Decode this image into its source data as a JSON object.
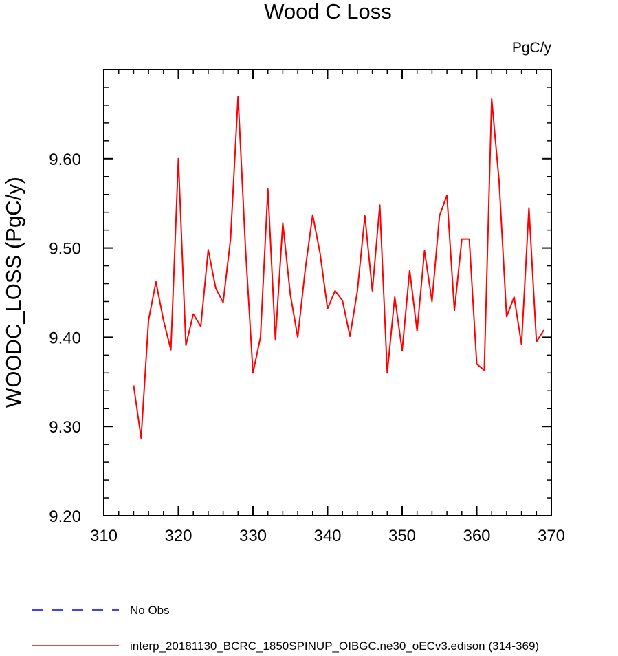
{
  "chart_data": {
    "type": "line",
    "title": "Wood C Loss",
    "units_label": "PgC/y",
    "xlabel": "",
    "ylabel": "WOODC_LOSS  (PgC/y)",
    "xlim": [
      310,
      370
    ],
    "ylim": [
      9.2,
      9.7
    ],
    "x_ticks": [
      "310",
      "320",
      "330",
      "340",
      "350",
      "360",
      "370"
    ],
    "y_ticks": [
      "9.20",
      "9.30",
      "9.40",
      "9.50",
      "9.60"
    ],
    "grid": false,
    "legend_position": "bottom",
    "series": [
      {
        "name": "No Obs",
        "color": "#0000ff",
        "dash": "dashed",
        "x": [],
        "y": []
      },
      {
        "name": "interp_20181130_BCRC_1850SPINUP_OIBGC.ne30_oECv3.edison (314-369)",
        "color": "#ff0000",
        "dash": "solid",
        "x": [
          314,
          315,
          316,
          317,
          318,
          319,
          320,
          321,
          322,
          323,
          324,
          325,
          326,
          327,
          328,
          329,
          330,
          331,
          332,
          333,
          334,
          335,
          336,
          337,
          338,
          339,
          340,
          341,
          342,
          343,
          344,
          345,
          346,
          347,
          348,
          349,
          350,
          351,
          352,
          353,
          354,
          355,
          356,
          357,
          358,
          359,
          360,
          361,
          362,
          363,
          364,
          365,
          366,
          367,
          368,
          369
        ],
        "y": [
          9.346,
          9.287,
          9.419,
          9.462,
          9.419,
          9.386,
          9.6,
          9.391,
          9.426,
          9.412,
          9.498,
          9.455,
          9.439,
          9.51,
          9.67,
          9.5,
          9.36,
          9.4,
          9.566,
          9.397,
          9.528,
          9.448,
          9.4,
          9.475,
          9.537,
          9.494,
          9.432,
          9.452,
          9.441,
          9.401,
          9.452,
          9.536,
          9.452,
          9.548,
          9.36,
          9.445,
          9.385,
          9.475,
          9.407,
          9.497,
          9.44,
          9.536,
          9.559,
          9.43,
          9.51,
          9.51,
          9.37,
          9.363,
          9.667,
          9.575,
          9.423,
          9.445,
          9.392,
          9.545,
          9.395,
          9.408
        ]
      }
    ]
  }
}
